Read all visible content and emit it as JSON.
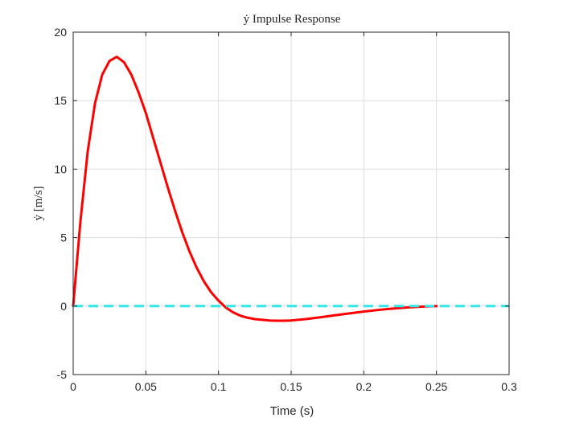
{
  "chart_data": {
    "type": "line",
    "title": "ẏ Impulse Response",
    "xlabel": "Time (s)",
    "ylabel": "ẏ [m/s]",
    "xlim": [
      0,
      0.3
    ],
    "ylim": [
      -5,
      20
    ],
    "xticks": [
      0,
      0.05,
      0.1,
      0.15,
      0.2,
      0.25,
      0.3
    ],
    "xtick_labels": [
      "0",
      "0.05",
      "0.1",
      "0.15",
      "0.2",
      "0.25",
      "0.3"
    ],
    "yticks": [
      -5,
      0,
      5,
      10,
      15,
      20
    ],
    "ytick_labels": [
      "-5",
      "0",
      "5",
      "10",
      "15",
      "20"
    ],
    "grid": true,
    "legend": "none",
    "series": [
      {
        "color": "#ff0000",
        "style": "solid",
        "x": [
          0,
          0.002,
          0.005,
          0.01,
          0.015,
          0.02,
          0.025,
          0.03,
          0.035,
          0.04,
          0.045,
          0.05,
          0.055,
          0.06,
          0.065,
          0.07,
          0.075,
          0.08,
          0.085,
          0.09,
          0.095,
          0.1,
          0.105,
          0.11,
          0.115,
          0.12,
          0.125,
          0.13,
          0.135,
          0.14,
          0.145,
          0.15,
          0.16,
          0.17,
          0.18,
          0.19,
          0.2,
          0.21,
          0.22,
          0.23,
          0.24,
          0.25
        ],
        "y": [
          0,
          2.5,
          6.2,
          11.3,
          14.8,
          16.9,
          17.9,
          18.2,
          17.8,
          16.9,
          15.6,
          14.1,
          12.3,
          10.5,
          8.7,
          7.0,
          5.4,
          4.0,
          2.8,
          1.8,
          1.0,
          0.4,
          -0.1,
          -0.45,
          -0.7,
          -0.85,
          -0.95,
          -1.0,
          -1.05,
          -1.07,
          -1.07,
          -1.05,
          -0.95,
          -0.82,
          -0.67,
          -0.53,
          -0.4,
          -0.28,
          -0.18,
          -0.1,
          -0.04,
          0
        ]
      },
      {
        "color": "#33e6e6",
        "style": "dashed",
        "x": [
          0,
          0.3
        ],
        "y": [
          0,
          0
        ]
      }
    ]
  }
}
